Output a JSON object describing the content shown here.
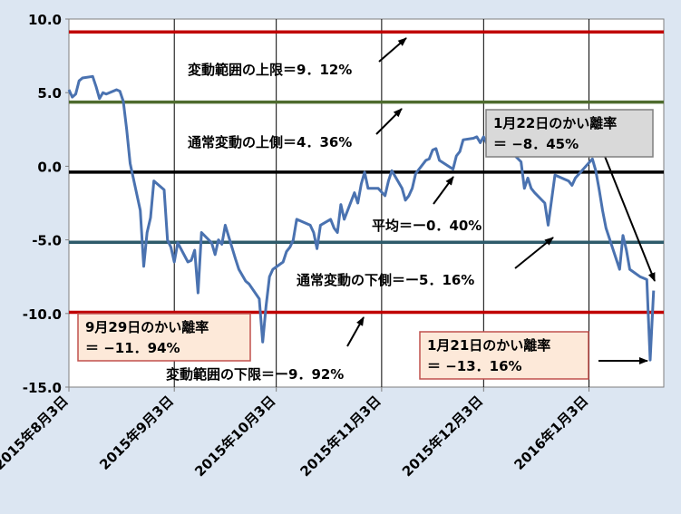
{
  "chart_data": {
    "type": "line",
    "xlabel": "",
    "ylabel": "",
    "ylim": [
      -15,
      10
    ],
    "yticks": [
      "10.0",
      "5.0",
      "0.0",
      "-5.0",
      "-10.0",
      "-15.0"
    ],
    "x_ticks": [
      "2015年8月3日",
      "2015年9月3日",
      "2015年10月3日",
      "2015年11月3日",
      "2015年12月3日",
      "2016年1月3日"
    ],
    "grid": "vertical",
    "colors": {
      "series": "#4a72b0",
      "bound": "#c00000",
      "normal": "#4e6b2e",
      "mean": "#000000",
      "lower_normal": "#2d5a6a",
      "background": "#dce6f2"
    },
    "x_start": "2015-08-03",
    "x_end": "2016-01-25",
    "series": [
      {
        "values": [
          [
            "2015-08-03",
            5.2
          ],
          [
            "2015-08-04",
            4.7
          ],
          [
            "2015-08-05",
            4.9
          ],
          [
            "2015-08-06",
            5.8
          ],
          [
            "2015-08-07",
            6.0
          ],
          [
            "2015-08-10",
            6.1
          ],
          [
            "2015-08-11",
            5.4
          ],
          [
            "2015-08-12",
            4.6
          ],
          [
            "2015-08-13",
            5.0
          ],
          [
            "2015-08-14",
            4.9
          ],
          [
            "2015-08-17",
            5.2
          ],
          [
            "2015-08-18",
            5.1
          ],
          [
            "2015-08-19",
            4.4
          ],
          [
            "2015-08-20",
            2.5
          ],
          [
            "2015-08-21",
            0.2
          ],
          [
            "2015-08-24",
            -3.0
          ],
          [
            "2015-08-25",
            -6.8
          ],
          [
            "2015-08-26",
            -4.5
          ],
          [
            "2015-08-27",
            -3.5
          ],
          [
            "2015-08-28",
            -1.0
          ],
          [
            "2015-08-31",
            -1.6
          ],
          [
            "2015-09-01",
            -5.0
          ],
          [
            "2015-09-02",
            -5.5
          ],
          [
            "2015-09-03",
            -6.5
          ],
          [
            "2015-09-04",
            -5.2
          ],
          [
            "2015-09-07",
            -6.5
          ],
          [
            "2015-09-08",
            -6.4
          ],
          [
            "2015-09-09",
            -5.7
          ],
          [
            "2015-09-10",
            -8.6
          ],
          [
            "2015-09-11",
            -4.5
          ],
          [
            "2015-09-14",
            -5.2
          ],
          [
            "2015-09-15",
            -6.0
          ],
          [
            "2015-09-16",
            -5.0
          ],
          [
            "2015-09-17",
            -5.3
          ],
          [
            "2015-09-18",
            -4.0
          ],
          [
            "2015-09-21",
            -6.3
          ],
          [
            "2015-09-22",
            -7.0
          ],
          [
            "2015-09-24",
            -7.8
          ],
          [
            "2015-09-25",
            -8.0
          ],
          [
            "2015-09-28",
            -9.0
          ],
          [
            "2015-09-29",
            -11.94
          ],
          [
            "2015-09-30",
            -9.5
          ],
          [
            "2015-10-01",
            -7.5
          ],
          [
            "2015-10-02",
            -7.0
          ],
          [
            "2015-10-05",
            -6.5
          ],
          [
            "2015-10-06",
            -5.8
          ],
          [
            "2015-10-07",
            -5.5
          ],
          [
            "2015-10-08",
            -5.0
          ],
          [
            "2015-10-09",
            -3.6
          ],
          [
            "2015-10-13",
            -4.0
          ],
          [
            "2015-10-14",
            -4.5
          ],
          [
            "2015-10-15",
            -5.6
          ],
          [
            "2015-10-16",
            -4.0
          ],
          [
            "2015-10-19",
            -3.6
          ],
          [
            "2015-10-20",
            -4.2
          ],
          [
            "2015-10-21",
            -4.5
          ],
          [
            "2015-10-22",
            -2.6
          ],
          [
            "2015-10-23",
            -3.6
          ],
          [
            "2015-10-26",
            -1.8
          ],
          [
            "2015-10-27",
            -2.5
          ],
          [
            "2015-10-28",
            -1.2
          ],
          [
            "2015-10-29",
            -0.4
          ],
          [
            "2015-10-30",
            -1.5
          ],
          [
            "2015-11-02",
            -1.5
          ],
          [
            "2015-11-04",
            -2.0
          ],
          [
            "2015-11-05",
            -1.0
          ],
          [
            "2015-11-06",
            -0.3
          ],
          [
            "2015-11-09",
            -1.5
          ],
          [
            "2015-11-10",
            -2.3
          ],
          [
            "2015-11-11",
            -2.0
          ],
          [
            "2015-11-12",
            -1.5
          ],
          [
            "2015-11-13",
            -0.5
          ],
          [
            "2015-11-16",
            0.4
          ],
          [
            "2015-11-17",
            0.5
          ],
          [
            "2015-11-18",
            1.1
          ],
          [
            "2015-11-19",
            1.2
          ],
          [
            "2015-11-20",
            0.4
          ],
          [
            "2015-11-24",
            -0.2
          ],
          [
            "2015-11-25",
            0.7
          ],
          [
            "2015-11-26",
            1.0
          ],
          [
            "2015-11-27",
            1.8
          ],
          [
            "2015-11-30",
            1.9
          ],
          [
            "2015-12-01",
            2.0
          ],
          [
            "2015-12-02",
            1.6
          ],
          [
            "2015-12-03",
            2.0
          ],
          [
            "2015-12-04",
            1.5
          ],
          [
            "2015-12-07",
            1.2
          ],
          [
            "2015-12-08",
            1.9
          ],
          [
            "2015-12-09",
            1.7
          ],
          [
            "2015-12-10",
            1.0
          ],
          [
            "2015-12-11",
            1.0
          ],
          [
            "2015-12-14",
            0.3
          ],
          [
            "2015-12-15",
            -1.5
          ],
          [
            "2015-12-16",
            -0.8
          ],
          [
            "2015-12-17",
            -1.5
          ],
          [
            "2015-12-18",
            -1.8
          ],
          [
            "2015-12-21",
            -2.5
          ],
          [
            "2015-12-22",
            -4.0
          ],
          [
            "2015-12-24",
            -0.6
          ],
          [
            "2015-12-25",
            -0.7
          ],
          [
            "2015-12-28",
            -1.0
          ],
          [
            "2015-12-29",
            -1.3
          ],
          [
            "2015-12-30",
            -0.8
          ],
          [
            "2016-01-04",
            0.5
          ],
          [
            "2016-01-05",
            -0.3
          ],
          [
            "2016-01-06",
            -1.6
          ],
          [
            "2016-01-07",
            -3.0
          ],
          [
            "2016-01-08",
            -4.2
          ],
          [
            "2016-01-12",
            -7.0
          ],
          [
            "2016-01-13",
            -4.7
          ],
          [
            "2016-01-14",
            -5.7
          ],
          [
            "2016-01-15",
            -7.0
          ],
          [
            "2016-01-18",
            -7.5
          ],
          [
            "2016-01-19",
            -7.6
          ],
          [
            "2016-01-20",
            -7.7
          ],
          [
            "2016-01-21",
            -13.16
          ],
          [
            "2016-01-22",
            -8.45
          ]
        ]
      }
    ],
    "reference_lines": [
      {
        "y": 9.12,
        "color": "#c00000",
        "label": "変動範囲の上限＝9．12%"
      },
      {
        "y": 4.36,
        "color": "#4e6b2e",
        "label": "通常変動の上側＝4．36%"
      },
      {
        "y": -0.4,
        "color": "#000000",
        "label": "平均＝ー0．40%"
      },
      {
        "y": -5.16,
        "color": "#2d5a6a",
        "label": "通常変動の下側＝ー5．16%"
      },
      {
        "y": -9.92,
        "color": "#c00000",
        "label": "変動範囲の下限＝ー9．92%"
      }
    ],
    "annotations": [
      {
        "line1": "9月29日のかい離率",
        "line2": "＝ −11．94%"
      },
      {
        "line1": "1月21日のかい離率",
        "line2": "＝ −13．16%"
      },
      {
        "line1": "1月22日のかい離率",
        "line2": "＝ −8．45%"
      }
    ]
  }
}
